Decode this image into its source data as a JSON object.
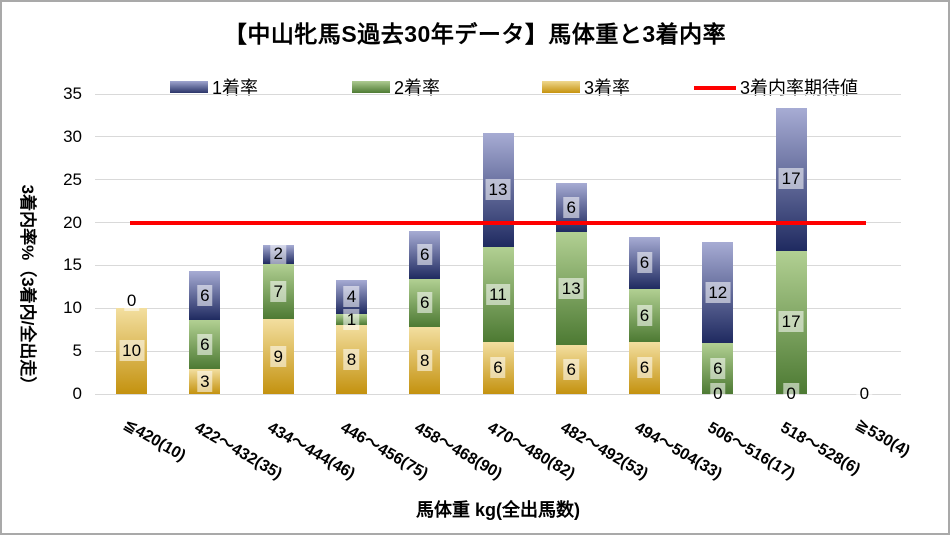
{
  "title": "【中山牝馬S過去30年データ】馬体重と3着内率",
  "legend": {
    "items": [
      {
        "label": "1着率",
        "type": "swatch",
        "color_top": "#a0a6d0",
        "color_bottom": "#2b3569"
      },
      {
        "label": "2着率",
        "type": "swatch",
        "color_top": "#aecb92",
        "color_bottom": "#4e7b33"
      },
      {
        "label": "3着率",
        "type": "swatch",
        "color_top": "#efd88f",
        "color_bottom": "#c6930e"
      },
      {
        "label": "3着内率期待値",
        "type": "line",
        "color": "#fe0000"
      }
    ]
  },
  "y_axis": {
    "title": "3着内率%（3着内/全出走）",
    "ticks": [
      35,
      30,
      25,
      20,
      15,
      10,
      5,
      0
    ],
    "min": 0,
    "max": 35
  },
  "x_axis": {
    "title": "馬体重 kg(全出馬数)"
  },
  "chart_data": {
    "type": "bar",
    "subtype": "stacked-column-with-target-line",
    "unit": "percent",
    "grid": true,
    "legend_position": "top",
    "ylim": [
      0,
      35
    ],
    "categories": [
      "≦420(10)",
      "422～432(35)",
      "434～444(46)",
      "446～456(75)",
      "458～468(90)",
      "470～480(82)",
      "482～492(53)",
      "494～504(33)",
      "506～516(17)",
      "518～528(6)",
      "≧530(4)"
    ],
    "stack_order": "bottom-to-top",
    "series": [
      {
        "name": "3着率",
        "color_top": "#f3dfa0",
        "color_bottom": "#c4920f",
        "values": [
          10.0,
          2.9,
          8.7,
          8.0,
          7.8,
          6.1,
          5.7,
          6.1,
          0,
          0,
          0
        ],
        "labels": [
          "10",
          "3",
          "9",
          "8",
          "8",
          "6",
          "6",
          "6",
          "0",
          "0",
          "0"
        ]
      },
      {
        "name": "2着率",
        "color_top": "#b2d093",
        "color_bottom": "#4d7a33",
        "values": [
          0,
          5.7,
          6.5,
          1.3,
          5.6,
          11.0,
          13.2,
          6.1,
          5.9,
          16.7,
          0
        ],
        "labels": [
          "0",
          "6",
          "7",
          "1",
          "6",
          "11",
          "13",
          "6",
          "6",
          "17",
          ""
        ]
      },
      {
        "name": "1着率",
        "color_top": "#a7acd4",
        "color_bottom": "#1f2a60",
        "values": [
          0,
          5.7,
          2.2,
          4.0,
          5.6,
          13.4,
          5.7,
          6.1,
          11.8,
          16.7,
          0
        ],
        "labels": [
          "",
          "6",
          "2",
          "4",
          "6",
          "13",
          "6",
          "6",
          "12",
          "17",
          ""
        ]
      }
    ],
    "target_line": {
      "name": "3着内率期待値",
      "value": 20,
      "color": "#fe0000"
    }
  }
}
